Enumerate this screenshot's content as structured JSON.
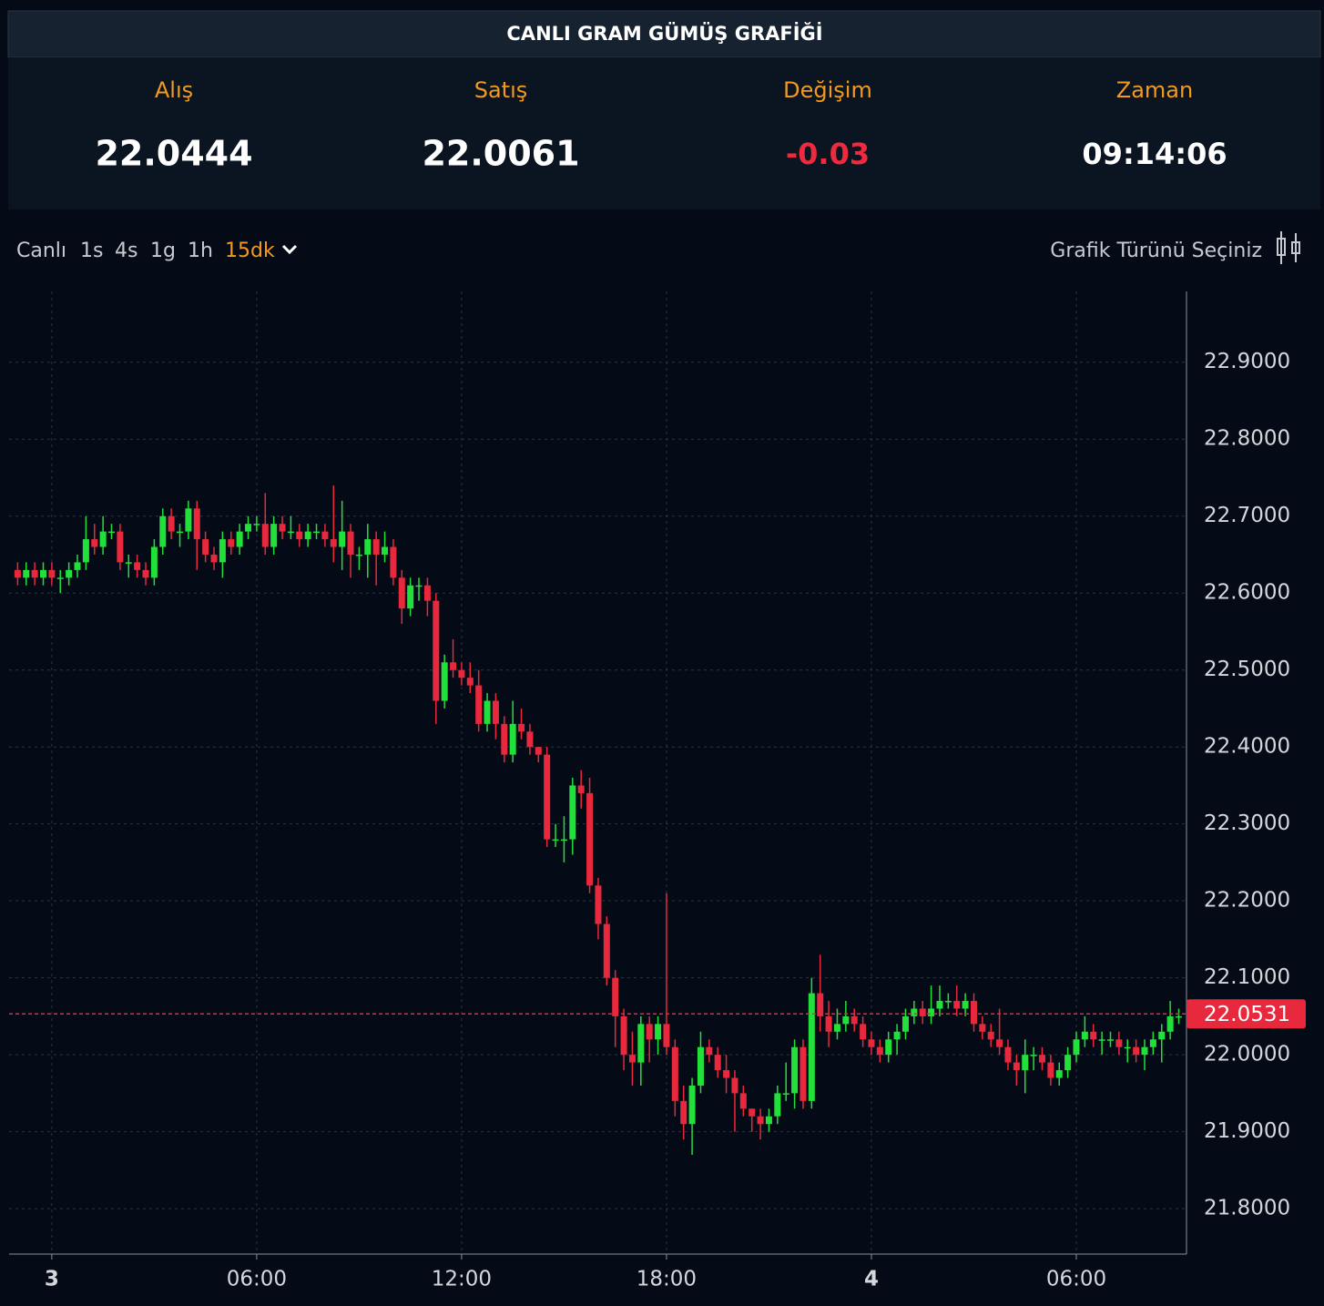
{
  "header": {
    "title": "CANLI GRAM GÜMÜŞ GRAFİĞİ"
  },
  "quotes": [
    {
      "label": "Alış",
      "value": "22.0444"
    },
    {
      "label": "Satış",
      "value": "22.0061"
    },
    {
      "label": "Değişim",
      "value": "-0.03"
    },
    {
      "label": "Zaman",
      "value": "09:14:06"
    }
  ],
  "toolbar": {
    "intervals": [
      "Canlı",
      "1s",
      "4s",
      "1g",
      "1h",
      "15dk"
    ],
    "chart_type_label": "Grafik Türünü Seçiniz"
  },
  "chart_data": {
    "type": "candlestick",
    "up_color": "#22e03a",
    "down_color": "#e8283c",
    "last_price_color": "#e8283c",
    "grid": true,
    "xlim": [
      -1.25,
      33.2
    ],
    "ylim": [
      21.741,
      22.992
    ],
    "xticks": [
      {
        "value": 0,
        "label": "3"
      },
      {
        "value": 6,
        "label": "06:00"
      },
      {
        "value": 12,
        "label": "12:00"
      },
      {
        "value": 18,
        "label": "18:00"
      },
      {
        "value": 24,
        "label": "4"
      },
      {
        "value": 30,
        "label": "06:00"
      }
    ],
    "yticks": [
      {
        "value": 21.8,
        "label": "21.8000"
      },
      {
        "value": 21.9,
        "label": "21.9000"
      },
      {
        "value": 22.0,
        "label": "22.0000"
      },
      {
        "value": 22.1,
        "label": "22.1000"
      },
      {
        "value": 22.2,
        "label": "22.2000"
      },
      {
        "value": 22.3,
        "label": "22.3000"
      },
      {
        "value": 22.4,
        "label": "22.4000"
      },
      {
        "value": 22.5,
        "label": "22.5000"
      },
      {
        "value": 22.6,
        "label": "22.6000"
      },
      {
        "value": 22.7,
        "label": "22.7000"
      },
      {
        "value": 22.8,
        "label": "22.8000"
      },
      {
        "value": 22.9,
        "label": "22.9000"
      }
    ],
    "last_price": 22.0531,
    "x": [
      -1,
      -0.75,
      -0.5,
      -0.25,
      0,
      0.25,
      0.5,
      0.75,
      1,
      1.25,
      1.5,
      1.75,
      2,
      2.25,
      2.5,
      2.75,
      3,
      3.25,
      3.5,
      3.75,
      4,
      4.25,
      4.5,
      4.75,
      5,
      5.25,
      5.5,
      5.75,
      6,
      6.25,
      6.5,
      6.75,
      7,
      7.25,
      7.5,
      7.75,
      8,
      8.25,
      8.5,
      8.75,
      9,
      9.25,
      9.5,
      9.75,
      10,
      10.25,
      10.5,
      10.75,
      11,
      11.25,
      11.5,
      11.75,
      12,
      12.25,
      12.5,
      12.75,
      13,
      13.25,
      13.5,
      13.75,
      14,
      14.25,
      14.5,
      14.75,
      15,
      15.25,
      15.5,
      15.75,
      16,
      16.25,
      16.5,
      16.75,
      17,
      17.25,
      17.5,
      17.75,
      18,
      18.25,
      18.5,
      18.75,
      19,
      19.25,
      19.5,
      19.75,
      20,
      20.25,
      20.5,
      20.75,
      21,
      21.25,
      21.5,
      21.75,
      22,
      22.25,
      22.5,
      22.75,
      23,
      23.25,
      23.5,
      23.75,
      24,
      24.25,
      24.5,
      24.75,
      25,
      25.25,
      25.5,
      25.75,
      26,
      26.25,
      26.5,
      26.75,
      27,
      27.25,
      27.5,
      27.75,
      28,
      28.25,
      28.5,
      28.75,
      29,
      29.25,
      29.5,
      29.75,
      30,
      30.25,
      30.5,
      30.75,
      31,
      31.25,
      31.5,
      31.75,
      32,
      32.25,
      32.5,
      32.75,
      33
    ],
    "open": [
      22.63,
      22.62,
      22.63,
      22.62,
      22.63,
      22.62,
      22.62,
      22.63,
      22.64,
      22.67,
      22.66,
      22.68,
      22.68,
      22.64,
      22.64,
      22.63,
      22.62,
      22.66,
      22.7,
      22.68,
      22.68,
      22.71,
      22.67,
      22.65,
      22.64,
      22.67,
      22.66,
      22.68,
      22.69,
      22.69,
      22.66,
      22.69,
      22.68,
      22.68,
      22.67,
      22.68,
      22.68,
      22.67,
      22.66,
      22.68,
      22.65,
      22.65,
      22.67,
      22.65,
      22.66,
      22.62,
      22.58,
      22.61,
      22.61,
      22.59,
      22.46,
      22.51,
      22.5,
      22.49,
      22.48,
      22.43,
      22.46,
      22.43,
      22.39,
      22.43,
      22.42,
      22.4,
      22.39,
      22.28,
      22.28,
      22.28,
      22.35,
      22.34,
      22.22,
      22.17,
      22.1,
      22.05,
      22.0,
      21.99,
      22.04,
      22.02,
      22.04,
      22.01,
      21.94,
      21.91,
      21.96,
      22.01,
      22.0,
      21.98,
      21.97,
      21.95,
      21.93,
      21.92,
      21.91,
      21.92,
      21.95,
      21.95,
      22.01,
      21.94,
      22.08,
      22.05,
      22.03,
      22.04,
      22.05,
      22.04,
      22.02,
      22.01,
      22.0,
      22.02,
      22.03,
      22.05,
      22.06,
      22.05,
      22.06,
      22.07,
      22.07,
      22.06,
      22.07,
      22.04,
      22.03,
      22.02,
      22.01,
      21.99,
      21.98,
      22.0,
      22.0,
      21.99,
      21.97,
      21.98,
      22.0,
      22.02,
      22.03,
      22.02,
      22.02,
      22.02,
      22.01,
      22.01,
      22.0,
      22.01,
      22.02,
      22.03,
      22.05
    ],
    "high": [
      22.64,
      22.64,
      22.64,
      22.64,
      22.64,
      22.63,
      22.64,
      22.65,
      22.7,
      22.69,
      22.7,
      22.69,
      22.69,
      22.65,
      22.65,
      22.64,
      22.67,
      22.71,
      22.71,
      22.69,
      22.72,
      22.72,
      22.68,
      22.66,
      22.68,
      22.68,
      22.69,
      22.7,
      22.7,
      22.73,
      22.7,
      22.7,
      22.7,
      22.69,
      22.69,
      22.69,
      22.69,
      22.74,
      22.72,
      22.69,
      22.66,
      22.69,
      22.68,
      22.68,
      22.67,
      22.63,
      22.62,
      22.62,
      22.62,
      22.6,
      22.52,
      22.54,
      22.51,
      22.51,
      22.5,
      22.47,
      22.47,
      22.44,
      22.46,
      22.45,
      22.43,
      22.4,
      22.4,
      22.3,
      22.31,
      22.36,
      22.37,
      22.36,
      22.23,
      22.18,
      22.11,
      22.06,
      22.03,
      22.05,
      22.05,
      22.05,
      22.21,
      22.02,
      21.96,
      21.97,
      22.03,
      22.02,
      22.01,
      22.0,
      21.98,
      21.96,
      21.93,
      21.93,
      21.93,
      21.96,
      21.99,
      22.02,
      22.02,
      22.1,
      22.13,
      22.07,
      22.06,
      22.07,
      22.06,
      22.05,
      22.03,
      22.02,
      22.03,
      22.04,
      22.06,
      22.07,
      22.07,
      22.09,
      22.09,
      22.08,
      22.09,
      22.08,
      22.08,
      22.05,
      22.04,
      22.06,
      22.02,
      22.0,
      22.02,
      22.01,
      22.01,
      22.0,
      21.99,
      22.01,
      22.03,
      22.05,
      22.04,
      22.03,
      22.03,
      22.03,
      22.02,
      22.02,
      22.02,
      22.03,
      22.04,
      22.07,
      22.06
    ],
    "low": [
      22.61,
      22.61,
      22.61,
      22.61,
      22.61,
      22.6,
      22.61,
      22.62,
      22.63,
      22.65,
      22.65,
      22.67,
      22.63,
      22.62,
      22.62,
      22.61,
      22.61,
      22.65,
      22.67,
      22.66,
      22.67,
      22.63,
      22.64,
      22.63,
      22.62,
      22.65,
      22.65,
      22.67,
      22.68,
      22.65,
      22.65,
      22.67,
      22.67,
      22.66,
      22.66,
      22.67,
      22.66,
      22.64,
      22.63,
      22.62,
      22.63,
      22.62,
      22.61,
      22.64,
      22.61,
      22.56,
      22.57,
      22.59,
      22.57,
      22.43,
      22.45,
      22.49,
      22.48,
      22.47,
      22.42,
      22.42,
      22.41,
      22.38,
      22.38,
      22.41,
      22.39,
      22.38,
      22.27,
      22.27,
      22.25,
      22.26,
      22.32,
      22.21,
      22.15,
      22.09,
      22.01,
      21.98,
      21.96,
      21.96,
      21.99,
      22.0,
      22.0,
      21.92,
      21.89,
      21.87,
      21.95,
      21.99,
      21.97,
      21.95,
      21.9,
      21.92,
      21.9,
      21.89,
      21.9,
      21.91,
      21.94,
      21.93,
      21.93,
      21.93,
      22.03,
      22.01,
      22.02,
      22.03,
      22.03,
      22.01,
      22.0,
      21.99,
      21.99,
      22.0,
      22.02,
      22.04,
      22.04,
      22.04,
      22.05,
      22.06,
      22.05,
      22.05,
      22.03,
      22.02,
      22.01,
      22.0,
      21.98,
      21.96,
      21.95,
      21.98,
      21.98,
      21.96,
      21.96,
      21.97,
      21.99,
      22.01,
      22.01,
      22.0,
      22.01,
      22.0,
      21.99,
      21.99,
      21.98,
      22.0,
      21.99,
      22.02,
      22.04
    ],
    "close": [
      22.62,
      22.63,
      22.62,
      22.63,
      22.62,
      22.62,
      22.63,
      22.64,
      22.67,
      22.66,
      22.68,
      22.68,
      22.64,
      22.64,
      22.63,
      22.62,
      22.66,
      22.7,
      22.68,
      22.68,
      22.71,
      22.67,
      22.65,
      22.64,
      22.67,
      22.66,
      22.68,
      22.69,
      22.69,
      22.66,
      22.69,
      22.68,
      22.68,
      22.67,
      22.68,
      22.68,
      22.67,
      22.66,
      22.68,
      22.65,
      22.65,
      22.67,
      22.65,
      22.66,
      22.62,
      22.58,
      22.61,
      22.61,
      22.59,
      22.46,
      22.51,
      22.5,
      22.49,
      22.48,
      22.43,
      22.46,
      22.43,
      22.39,
      22.43,
      22.42,
      22.4,
      22.39,
      22.28,
      22.28,
      22.28,
      22.35,
      22.34,
      22.22,
      22.17,
      22.1,
      22.05,
      22.0,
      21.99,
      22.04,
      22.02,
      22.04,
      22.01,
      21.94,
      21.91,
      21.96,
      22.01,
      22.0,
      21.98,
      21.97,
      21.95,
      21.93,
      21.92,
      21.91,
      21.92,
      21.95,
      21.95,
      22.01,
      21.94,
      22.08,
      22.05,
      22.03,
      22.04,
      22.05,
      22.04,
      22.02,
      22.01,
      22.0,
      22.02,
      22.03,
      22.05,
      22.06,
      22.05,
      22.06,
      22.07,
      22.07,
      22.06,
      22.07,
      22.04,
      22.03,
      22.02,
      22.01,
      21.99,
      21.98,
      22.0,
      22.0,
      21.99,
      21.97,
      21.98,
      22.0,
      22.02,
      22.03,
      22.02,
      22.02,
      22.02,
      22.01,
      22.01,
      22.0,
      22.01,
      22.02,
      22.03,
      22.05,
      22.05
    ]
  }
}
